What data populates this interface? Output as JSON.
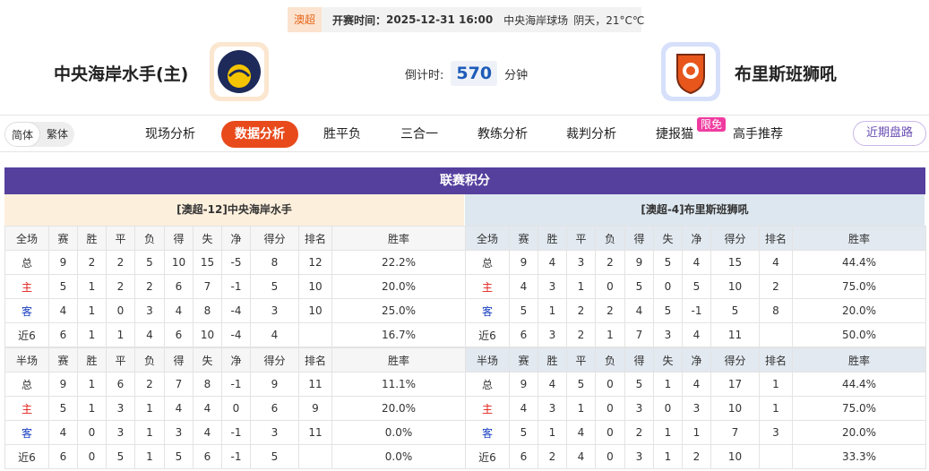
{
  "header": {
    "league": "澳超",
    "kickoff_label": "开赛时间：",
    "kickoff_time": "2025-12-31 16:00",
    "venue": "中央海岸球场",
    "weather": "阴天，21°C℃"
  },
  "match": {
    "home_team": "中央海岸水手(主)",
    "away_team": "布里斯班狮吼",
    "countdown_label": "倒计时:",
    "countdown_value": 570,
    "countdown_unit": "分钟"
  },
  "language": {
    "options": [
      "简体",
      "繁体"
    ]
  },
  "nav": {
    "tabs": [
      "现场分析",
      "数据分析",
      "胜平负",
      "三合一",
      "教练分析",
      "裁判分析",
      "捷报猫",
      "高手推荐"
    ],
    "active_index": 1,
    "badge": "限免",
    "side_button": "近期盘路"
  },
  "standings": {
    "title": "联赛积分",
    "panels": [
      {
        "title": "[澳超-12]中央海岸水手",
        "tables": [
          {
            "columns": [
              "全场",
              "赛",
              "胜",
              "平",
              "负",
              "得",
              "失",
              "净",
              "得分",
              "排名",
              "胜率"
            ],
            "rows": [
              [
                "总",
                9,
                2,
                2,
                5,
                10,
                15,
                -5,
                8,
                12,
                "22.2%"
              ],
              [
                "主",
                5,
                1,
                2,
                2,
                6,
                7,
                -1,
                5,
                10,
                "20.0%"
              ],
              [
                "客",
                4,
                1,
                0,
                3,
                4,
                8,
                -4,
                3,
                10,
                "25.0%"
              ],
              [
                "近6",
                6,
                1,
                1,
                4,
                6,
                10,
                -4,
                4,
                null,
                "16.7%"
              ]
            ]
          },
          {
            "columns": [
              "半场",
              "赛",
              "胜",
              "平",
              "负",
              "得",
              "失",
              "净",
              "得分",
              "排名",
              "胜率"
            ],
            "rows": [
              [
                "总",
                9,
                1,
                6,
                2,
                7,
                8,
                -1,
                9,
                11,
                "11.1%"
              ],
              [
                "主",
                5,
                1,
                3,
                1,
                4,
                4,
                0,
                6,
                9,
                "20.0%"
              ],
              [
                "客",
                4,
                0,
                3,
                1,
                3,
                4,
                -1,
                3,
                11,
                "0.0%"
              ],
              [
                "近6",
                6,
                0,
                5,
                1,
                5,
                6,
                -1,
                5,
                null,
                "0.0%"
              ]
            ]
          }
        ]
      },
      {
        "title": "[澳超-4]布里斯班狮吼",
        "tables": [
          {
            "columns": [
              "全场",
              "赛",
              "胜",
              "平",
              "负",
              "得",
              "失",
              "净",
              "得分",
              "排名",
              "胜率"
            ],
            "rows": [
              [
                "总",
                9,
                4,
                3,
                2,
                9,
                5,
                4,
                15,
                4,
                "44.4%"
              ],
              [
                "主",
                4,
                3,
                1,
                0,
                5,
                0,
                5,
                10,
                2,
                "75.0%"
              ],
              [
                "客",
                5,
                1,
                2,
                2,
                4,
                5,
                -1,
                5,
                8,
                "20.0%"
              ],
              [
                "近6",
                6,
                3,
                2,
                1,
                7,
                3,
                4,
                11,
                null,
                "50.0%"
              ]
            ]
          },
          {
            "columns": [
              "半场",
              "赛",
              "胜",
              "平",
              "负",
              "得",
              "失",
              "净",
              "得分",
              "排名",
              "胜率"
            ],
            "rows": [
              [
                "总",
                9,
                4,
                5,
                0,
                5,
                1,
                4,
                17,
                1,
                "44.4%"
              ],
              [
                "主",
                4,
                3,
                1,
                0,
                3,
                0,
                3,
                10,
                1,
                "75.0%"
              ],
              [
                "客",
                5,
                1,
                4,
                0,
                2,
                1,
                1,
                7,
                3,
                "20.0%"
              ],
              [
                "近6",
                6,
                2,
                4,
                0,
                3,
                1,
                2,
                10,
                null,
                "33.3%"
              ]
            ]
          }
        ]
      }
    ]
  }
}
